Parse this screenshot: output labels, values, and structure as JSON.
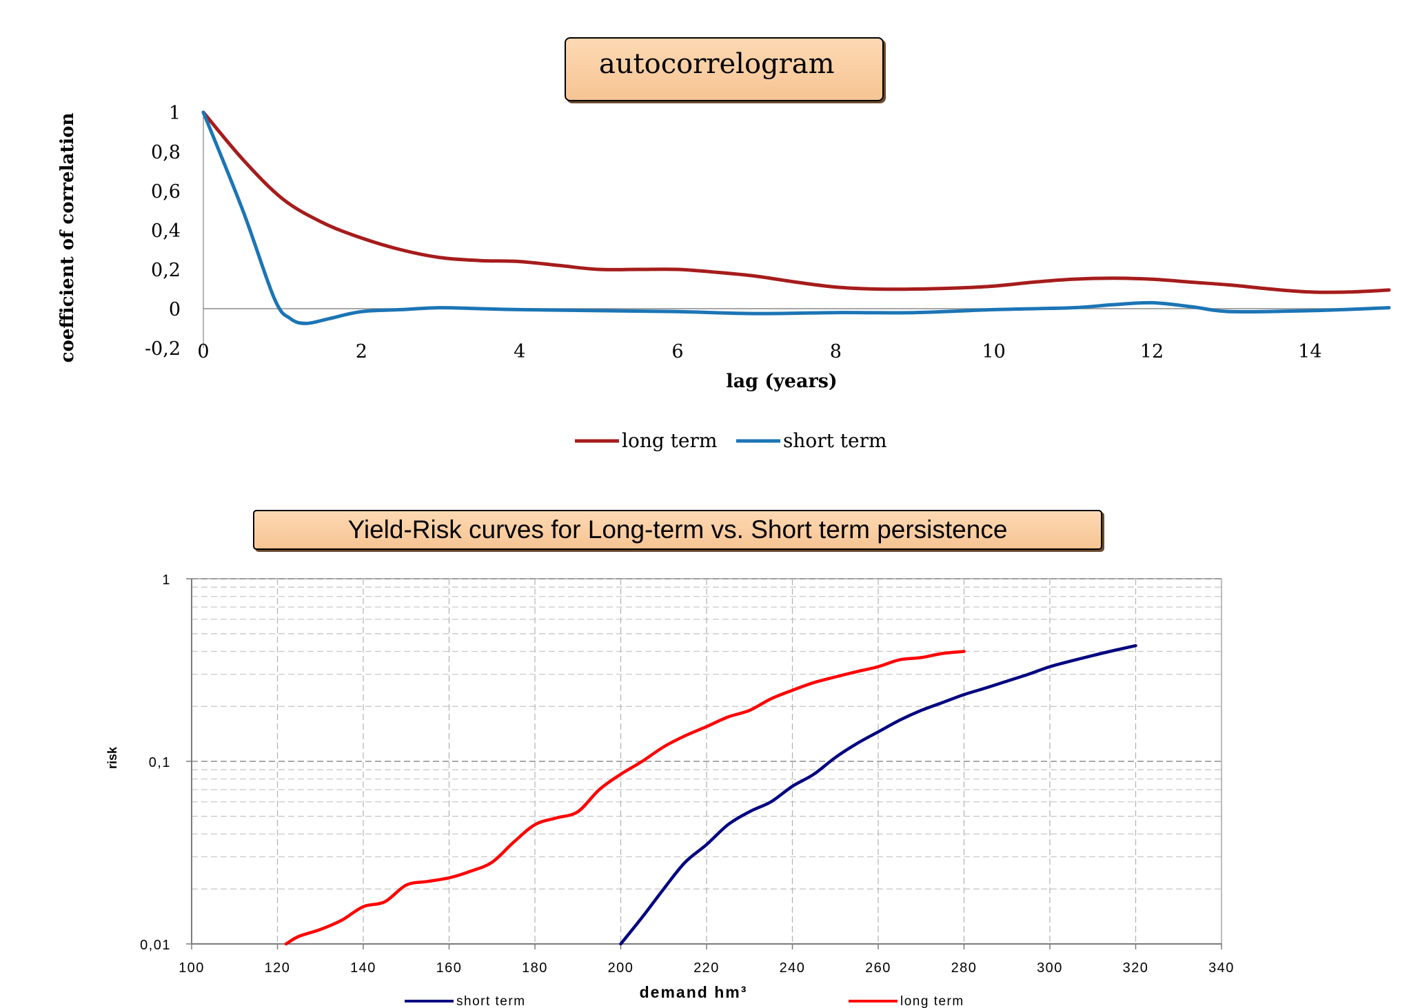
{
  "charts": {
    "top_title": "autocorrelogram",
    "bottom_title": "Yield-Risk curves for Long-term vs. Short term persistence"
  },
  "chart_data": [
    {
      "type": "line",
      "title": "autocorrelogram",
      "xlabel": "lag (years)",
      "ylabel": "coefficient of correlation",
      "xlim": [
        0,
        15
      ],
      "ylim": [
        -0.2,
        1
      ],
      "x_ticks": [
        "0",
        "2",
        "4",
        "6",
        "8",
        "10",
        "12",
        "14"
      ],
      "x_tick_values": [
        0,
        2,
        4,
        6,
        8,
        10,
        12,
        14
      ],
      "y_ticks": [
        "-0,2",
        "0",
        "0,2",
        "0,4",
        "0,6",
        "0,8",
        "1"
      ],
      "y_tick_values": [
        -0.2,
        0,
        0.2,
        0.4,
        0.6,
        0.8,
        1
      ],
      "grid": false,
      "legend_position": "bottom-center",
      "series": [
        {
          "name": "long term",
          "color": "#a61c1c",
          "x": [
            0,
            0.5,
            1,
            1.5,
            2,
            2.5,
            3,
            3.5,
            4,
            4.5,
            5,
            5.5,
            6,
            6.5,
            7,
            7.5,
            8,
            8.5,
            9,
            9.5,
            10,
            10.5,
            11,
            11.5,
            12,
            12.5,
            13,
            13.5,
            14,
            14.5,
            15
          ],
          "y": [
            1,
            0.76,
            0.56,
            0.44,
            0.36,
            0.3,
            0.26,
            0.245,
            0.24,
            0.22,
            0.2,
            0.2,
            0.2,
            0.185,
            0.165,
            0.135,
            0.11,
            0.1,
            0.1,
            0.105,
            0.115,
            0.135,
            0.15,
            0.155,
            0.15,
            0.135,
            0.12,
            0.1,
            0.085,
            0.085,
            0.095
          ]
        },
        {
          "name": "short term",
          "color": "#1b75b5",
          "x": [
            0,
            0.5,
            0.9,
            1.1,
            1.3,
            1.6,
            2,
            2.5,
            3,
            3.5,
            4,
            5,
            6,
            7,
            8,
            9,
            10,
            11,
            11.5,
            12,
            12.5,
            13,
            14,
            15
          ],
          "y": [
            1,
            0.5,
            0.05,
            -0.05,
            -0.075,
            -0.05,
            -0.015,
            -0.005,
            0.005,
            0,
            -0.005,
            -0.01,
            -0.015,
            -0.025,
            -0.02,
            -0.02,
            -0.005,
            0.005,
            0.02,
            0.03,
            0.01,
            -0.015,
            -0.01,
            0.005
          ]
        }
      ]
    },
    {
      "type": "line",
      "title": "Yield-Risk curves for Long-term vs. Short term persistence",
      "xlabel": "demand hm³",
      "ylabel": "risk",
      "xlim": [
        100,
        340
      ],
      "ylim": [
        0.01,
        1
      ],
      "yscale": "log",
      "x_ticks": [
        "100",
        "120",
        "140",
        "160",
        "180",
        "200",
        "220",
        "240",
        "260",
        "280",
        "300",
        "320",
        "340"
      ],
      "x_tick_values": [
        100,
        120,
        140,
        160,
        180,
        200,
        220,
        240,
        260,
        280,
        300,
        320,
        340
      ],
      "y_ticks": [
        "0,01",
        "0,1",
        "1"
      ],
      "y_tick_values": [
        0.01,
        0.1,
        1
      ],
      "grid": true,
      "legend_position": "bottom",
      "series": [
        {
          "name": "short term",
          "color": "#000080",
          "x": [
            200,
            205,
            210,
            215,
            220,
            225,
            230,
            235,
            240,
            245,
            250,
            255,
            260,
            265,
            270,
            275,
            280,
            285,
            290,
            295,
            300,
            305,
            310,
            315,
            320
          ],
          "y": [
            0.01,
            0.014,
            0.02,
            0.028,
            0.035,
            0.045,
            0.053,
            0.06,
            0.073,
            0.085,
            0.105,
            0.125,
            0.145,
            0.168,
            0.19,
            0.21,
            0.232,
            0.252,
            0.275,
            0.3,
            0.33,
            0.355,
            0.38,
            0.405,
            0.43
          ]
        },
        {
          "name": "long term",
          "color": "#ff0000",
          "x": [
            122,
            125,
            130,
            135,
            140,
            145,
            150,
            155,
            160,
            165,
            170,
            175,
            180,
            185,
            190,
            195,
            200,
            205,
            210,
            215,
            220,
            225,
            230,
            235,
            240,
            245,
            250,
            255,
            260,
            265,
            270,
            275,
            280
          ],
          "y": [
            0.01,
            0.011,
            0.012,
            0.0135,
            0.016,
            0.017,
            0.021,
            0.022,
            0.023,
            0.025,
            0.028,
            0.036,
            0.045,
            0.049,
            0.053,
            0.07,
            0.085,
            0.1,
            0.12,
            0.138,
            0.155,
            0.175,
            0.19,
            0.22,
            0.245,
            0.27,
            0.29,
            0.31,
            0.33,
            0.36,
            0.37,
            0.39,
            0.4
          ]
        }
      ]
    }
  ]
}
